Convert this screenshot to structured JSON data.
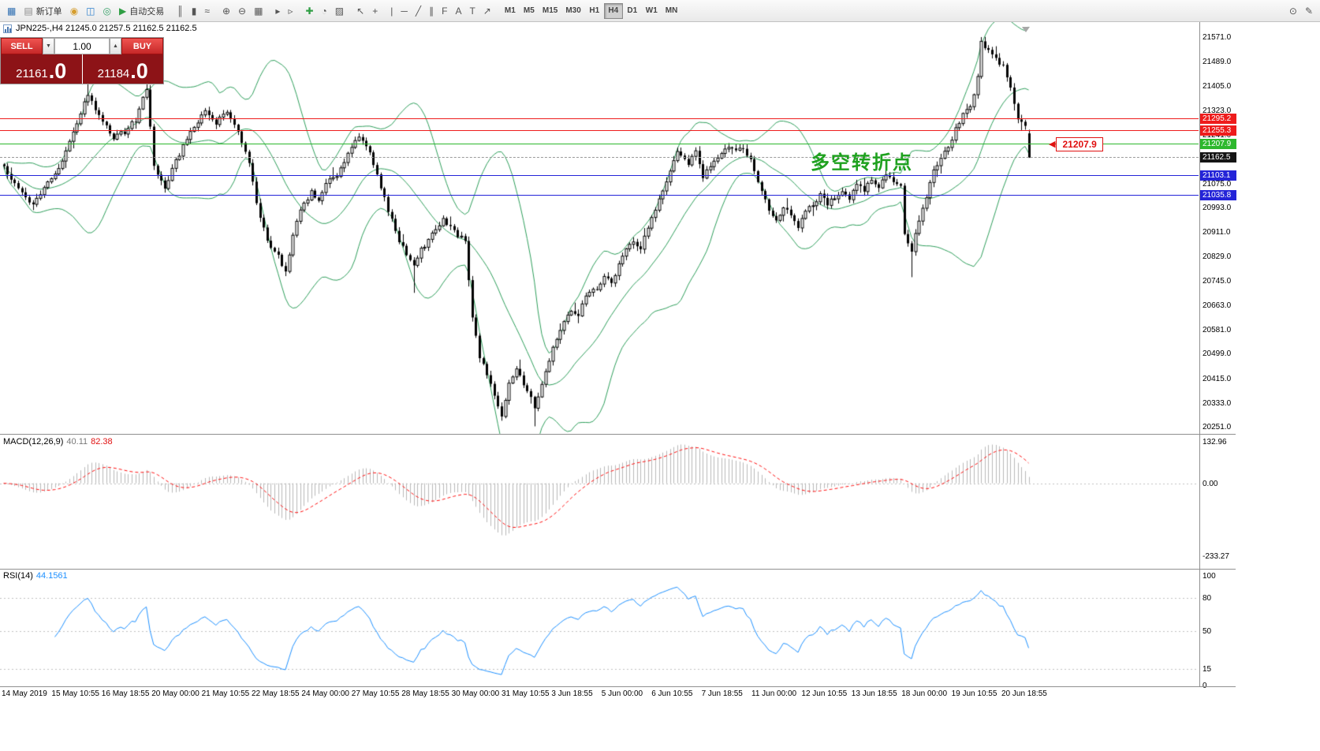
{
  "toolbar": {
    "left_items": [
      {
        "name": "new-chart",
        "glyph": "▦",
        "color": "#2b6cb0"
      },
      {
        "name": "new-order",
        "glyph": "▤",
        "color": "#8a8a8a",
        "label": "新订单"
      },
      {
        "name": "deposit",
        "glyph": "◉",
        "color": "#d69e2e"
      },
      {
        "name": "accounts",
        "glyph": "◫",
        "color": "#3182ce"
      },
      {
        "name": "support",
        "glyph": "◎",
        "color": "#38a169"
      },
      {
        "name": "auto-trading",
        "glyph": "▶",
        "color": "#2f9e44",
        "label": "自动交易"
      },
      {
        "sep": true
      },
      {
        "name": "bar-chart",
        "glyph": "║",
        "color": "#555"
      },
      {
        "name": "candlestick-chart",
        "glyph": "▮",
        "color": "#555"
      },
      {
        "name": "line-chart",
        "glyph": "≈",
        "color": "#555"
      },
      {
        "sep": true
      },
      {
        "name": "zoom-in",
        "glyph": "⊕",
        "color": "#555"
      },
      {
        "name": "zoom-out",
        "glyph": "⊖",
        "color": "#555"
      },
      {
        "name": "tile-windows",
        "glyph": "▦",
        "color": "#555"
      },
      {
        "sep": true
      },
      {
        "name": "auto-scroll",
        "glyph": "▸",
        "color": "#555"
      },
      {
        "name": "chart-shift",
        "glyph": "▹",
        "color": "#555"
      },
      {
        "sep": true
      },
      {
        "name": "indicators",
        "glyph": "✚",
        "color": "#2f9e44"
      },
      {
        "name": "periods",
        "glyph": "◔",
        "color": "#555"
      },
      {
        "name": "templates",
        "glyph": "▨",
        "color": "#555"
      },
      {
        "sep": true
      },
      {
        "name": "cursor",
        "glyph": "↖",
        "color": "#555"
      },
      {
        "name": "crosshair",
        "glyph": "+",
        "color": "#555"
      },
      {
        "sep": true
      },
      {
        "name": "vertical-line",
        "glyph": "|",
        "color": "#555"
      },
      {
        "name": "horizontal-line",
        "glyph": "─",
        "color": "#555"
      },
      {
        "name": "trendline",
        "glyph": "╱",
        "color": "#555"
      },
      {
        "name": "equidistant-channel",
        "glyph": "∥",
        "color": "#555"
      },
      {
        "name": "fibonacci",
        "glyph": "F",
        "color": "#555"
      },
      {
        "name": "text",
        "glyph": "A",
        "color": "#555"
      },
      {
        "name": "text-label",
        "glyph": "T",
        "color": "#555"
      },
      {
        "name": "arrow-objects",
        "glyph": "↗",
        "color": "#555"
      },
      {
        "sep": true
      }
    ],
    "timeframes": [
      "M1",
      "M5",
      "M15",
      "M30",
      "H1",
      "H4",
      "D1",
      "W1",
      "MN"
    ],
    "active_timeframe": "H4",
    "right_items": [
      {
        "name": "search",
        "glyph": "⊙",
        "color": "#555"
      },
      {
        "name": "edit",
        "glyph": "✎",
        "color": "#555"
      }
    ]
  },
  "chart_header": {
    "symbol_info": "JPN225-,H4  21245.0 21257.5 21162.5 21162.5"
  },
  "trade_panel": {
    "sell_label": "SELL",
    "buy_label": "BUY",
    "volume": "1.00",
    "volume_down_glyph": "▼",
    "volume_up_glyph": "▲",
    "sell_price_main": "21161",
    "sell_price_frac": ".0",
    "buy_price_main": "21184",
    "buy_price_frac": ".0"
  },
  "annotation": {
    "text": "多空转折点",
    "color": "#1fa11f"
  },
  "price_pointer": {
    "pointer_glyph": "◀",
    "label": "21207.9"
  },
  "axis": {
    "ticks": [
      21571.0,
      21489.0,
      21405.0,
      21323.0,
      21241.0,
      21159.0,
      21075.0,
      20993.0,
      20911.0,
      20829.0,
      20745.0,
      20663.0,
      20581.0,
      20499.0,
      20415.0,
      20333.0,
      20251.0
    ]
  },
  "hlines": [
    {
      "price": 21295.2,
      "color": "#ee1c1c",
      "label": "21295.2",
      "label_bg": "#ee1c1c",
      "dashed": false
    },
    {
      "price": 21255.3,
      "color": "#ee1c1c",
      "label": "21255.3",
      "label_bg": "#ee1c1c",
      "dashed": false
    },
    {
      "price": 21207.9,
      "color": "#2db82d",
      "label": "21207.9",
      "label_bg": "#2db82d",
      "dashed": false
    },
    {
      "price": 21162.5,
      "color": "#9a9a9a",
      "label": "21162.5",
      "label_bg": "#151515",
      "dashed": true
    },
    {
      "price": 21103.1,
      "color": "#2424d8",
      "label": "21103.1",
      "label_bg": "#2424d8",
      "dashed": false
    },
    {
      "price": 21035.8,
      "color": "#2424d8",
      "label": "21035.8",
      "label_bg": "#2424d8",
      "dashed": false
    }
  ],
  "macd": {
    "label": "MACD(12,26,9)",
    "main_value": "40.11",
    "signal_value": "82.38",
    "scale_values": [
      132.96,
      0,
      -233.27
    ]
  },
  "rsi": {
    "label": "RSI(14)",
    "value": "44.1561",
    "scale_values": [
      100,
      80,
      50,
      15,
      0
    ]
  },
  "time_axis": [
    "14 May 2019",
    "15 May 10:55",
    "16 May 18:55",
    "20 May 00:00",
    "21 May 10:55",
    "22 May 18:55",
    "24 May 00:00",
    "27 May 10:55",
    "28 May 18:55",
    "30 May 00:00",
    "31 May 10:55",
    "3 Jun 18:55",
    "5 Jun 00:00",
    "6 Jun 10:55",
    "7 Jun 18:55",
    "11 Jun 00:00",
    "12 Jun 10:55",
    "13 Jun 18:55",
    "18 Jun 00:00",
    "19 Jun 10:55",
    "20 Jun 18:55"
  ],
  "colors": {
    "band_green": "#2e9e5b",
    "candle": "#000000",
    "macd_hist": "#b8b8b8",
    "macd_signal": "#ff1010",
    "rsi_line": "#1e90ff",
    "grid_dotted": "#c0c0c0"
  },
  "chart_data": {
    "type": "candlestick+indicators",
    "symbol": "JPN225-",
    "timeframe": "H4",
    "ohlc_current": {
      "open": 21245.0,
      "high": 21257.5,
      "low": 21162.5,
      "close": 21162.5
    },
    "bid": 21161.0,
    "ask": 21184.0,
    "price_range_visible": [
      20251.0,
      21571.0
    ],
    "candle_count": 281,
    "anchors": [
      [
        0,
        21130
      ],
      [
        4,
        21060
      ],
      [
        8,
        21000
      ],
      [
        12,
        21080
      ],
      [
        16,
        21150
      ],
      [
        20,
        21280
      ],
      [
        23,
        21380
      ],
      [
        26,
        21300
      ],
      [
        30,
        21230
      ],
      [
        33,
        21250
      ],
      [
        36,
        21290
      ],
      [
        39,
        21400
      ],
      [
        41,
        21130
      ],
      [
        44,
        21060
      ],
      [
        47,
        21150
      ],
      [
        51,
        21250
      ],
      [
        55,
        21320
      ],
      [
        58,
        21280
      ],
      [
        61,
        21320
      ],
      [
        64,
        21250
      ],
      [
        67,
        21150
      ],
      [
        69,
        21010
      ],
      [
        72,
        20880
      ],
      [
        75,
        20830
      ],
      [
        77,
        20770
      ],
      [
        79,
        20900
      ],
      [
        81,
        20980
      ],
      [
        84,
        21050
      ],
      [
        86,
        21010
      ],
      [
        88,
        21080
      ],
      [
        91,
        21100
      ],
      [
        93,
        21150
      ],
      [
        95,
        21200
      ],
      [
        97,
        21230
      ],
      [
        100,
        21180
      ],
      [
        103,
        21060
      ],
      [
        106,
        20950
      ],
      [
        108,
        20880
      ],
      [
        110,
        20840
      ],
      [
        112,
        20800
      ],
      [
        114,
        20850
      ],
      [
        117,
        20900
      ],
      [
        120,
        20950
      ],
      [
        122,
        20930
      ],
      [
        124,
        20900
      ],
      [
        126,
        20880
      ],
      [
        128,
        20620
      ],
      [
        130,
        20490
      ],
      [
        132,
        20430
      ],
      [
        134,
        20360
      ],
      [
        136,
        20290
      ],
      [
        138,
        20400
      ],
      [
        140,
        20450
      ],
      [
        142,
        20390
      ],
      [
        144,
        20350
      ],
      [
        145,
        20310
      ],
      [
        147,
        20390
      ],
      [
        149,
        20480
      ],
      [
        152,
        20580
      ],
      [
        155,
        20650
      ],
      [
        157,
        20620
      ],
      [
        159,
        20700
      ],
      [
        162,
        20720
      ],
      [
        164,
        20760
      ],
      [
        166,
        20740
      ],
      [
        168,
        20800
      ],
      [
        170,
        20850
      ],
      [
        172,
        20880
      ],
      [
        174,
        20860
      ],
      [
        176,
        20920
      ],
      [
        179,
        21020
      ],
      [
        182,
        21120
      ],
      [
        184,
        21180
      ],
      [
        187,
        21140
      ],
      [
        189,
        21180
      ],
      [
        191,
        21100
      ],
      [
        194,
        21150
      ],
      [
        197,
        21200
      ],
      [
        200,
        21180
      ],
      [
        202,
        21200
      ],
      [
        204,
        21150
      ],
      [
        207,
        21050
      ],
      [
        209,
        20990
      ],
      [
        211,
        20950
      ],
      [
        213,
        21000
      ],
      [
        215,
        20960
      ],
      [
        217,
        20930
      ],
      [
        219,
        20980
      ],
      [
        221,
        21000
      ],
      [
        223,
        21040
      ],
      [
        225,
        21000
      ],
      [
        227,
        21030
      ],
      [
        229,
        21050
      ],
      [
        231,
        21020
      ],
      [
        233,
        21070
      ],
      [
        235,
        21050
      ],
      [
        237,
        21090
      ],
      [
        239,
        21060
      ],
      [
        241,
        21100
      ],
      [
        243,
        21080
      ],
      [
        245,
        21060
      ],
      [
        246,
        20910
      ],
      [
        248,
        20850
      ],
      [
        250,
        20950
      ],
      [
        252,
        21030
      ],
      [
        254,
        21120
      ],
      [
        256,
        21160
      ],
      [
        258,
        21200
      ],
      [
        260,
        21260
      ],
      [
        262,
        21310
      ],
      [
        264,
        21330
      ],
      [
        266,
        21430
      ],
      [
        267,
        21560
      ],
      [
        269,
        21520
      ],
      [
        271,
        21500
      ],
      [
        273,
        21470
      ],
      [
        275,
        21400
      ],
      [
        277,
        21300
      ],
      [
        279,
        21270
      ],
      [
        280,
        21162.5
      ]
    ],
    "forced_wicks": [
      {
        "i": 23,
        "high": 21430
      },
      {
        "i": 39,
        "high": 21432
      },
      {
        "i": 112,
        "low": 20705
      },
      {
        "i": 136,
        "low": 20272
      },
      {
        "i": 145,
        "low": 20253
      },
      {
        "i": 248,
        "low": 20758
      },
      {
        "i": 267,
        "high": 21571
      },
      {
        "i": 271,
        "high": 21540
      },
      {
        "i": 280,
        "high": 21257.5,
        "low": 21162.5
      }
    ],
    "bollinger": {
      "period": 20,
      "dev": 2
    },
    "macd_params": {
      "fast": 12,
      "slow": 26,
      "signal": 9,
      "range": [
        -233.27,
        132.96
      ]
    },
    "rsi_params": {
      "period": 14,
      "levels": [
        80,
        50,
        15
      ]
    }
  }
}
